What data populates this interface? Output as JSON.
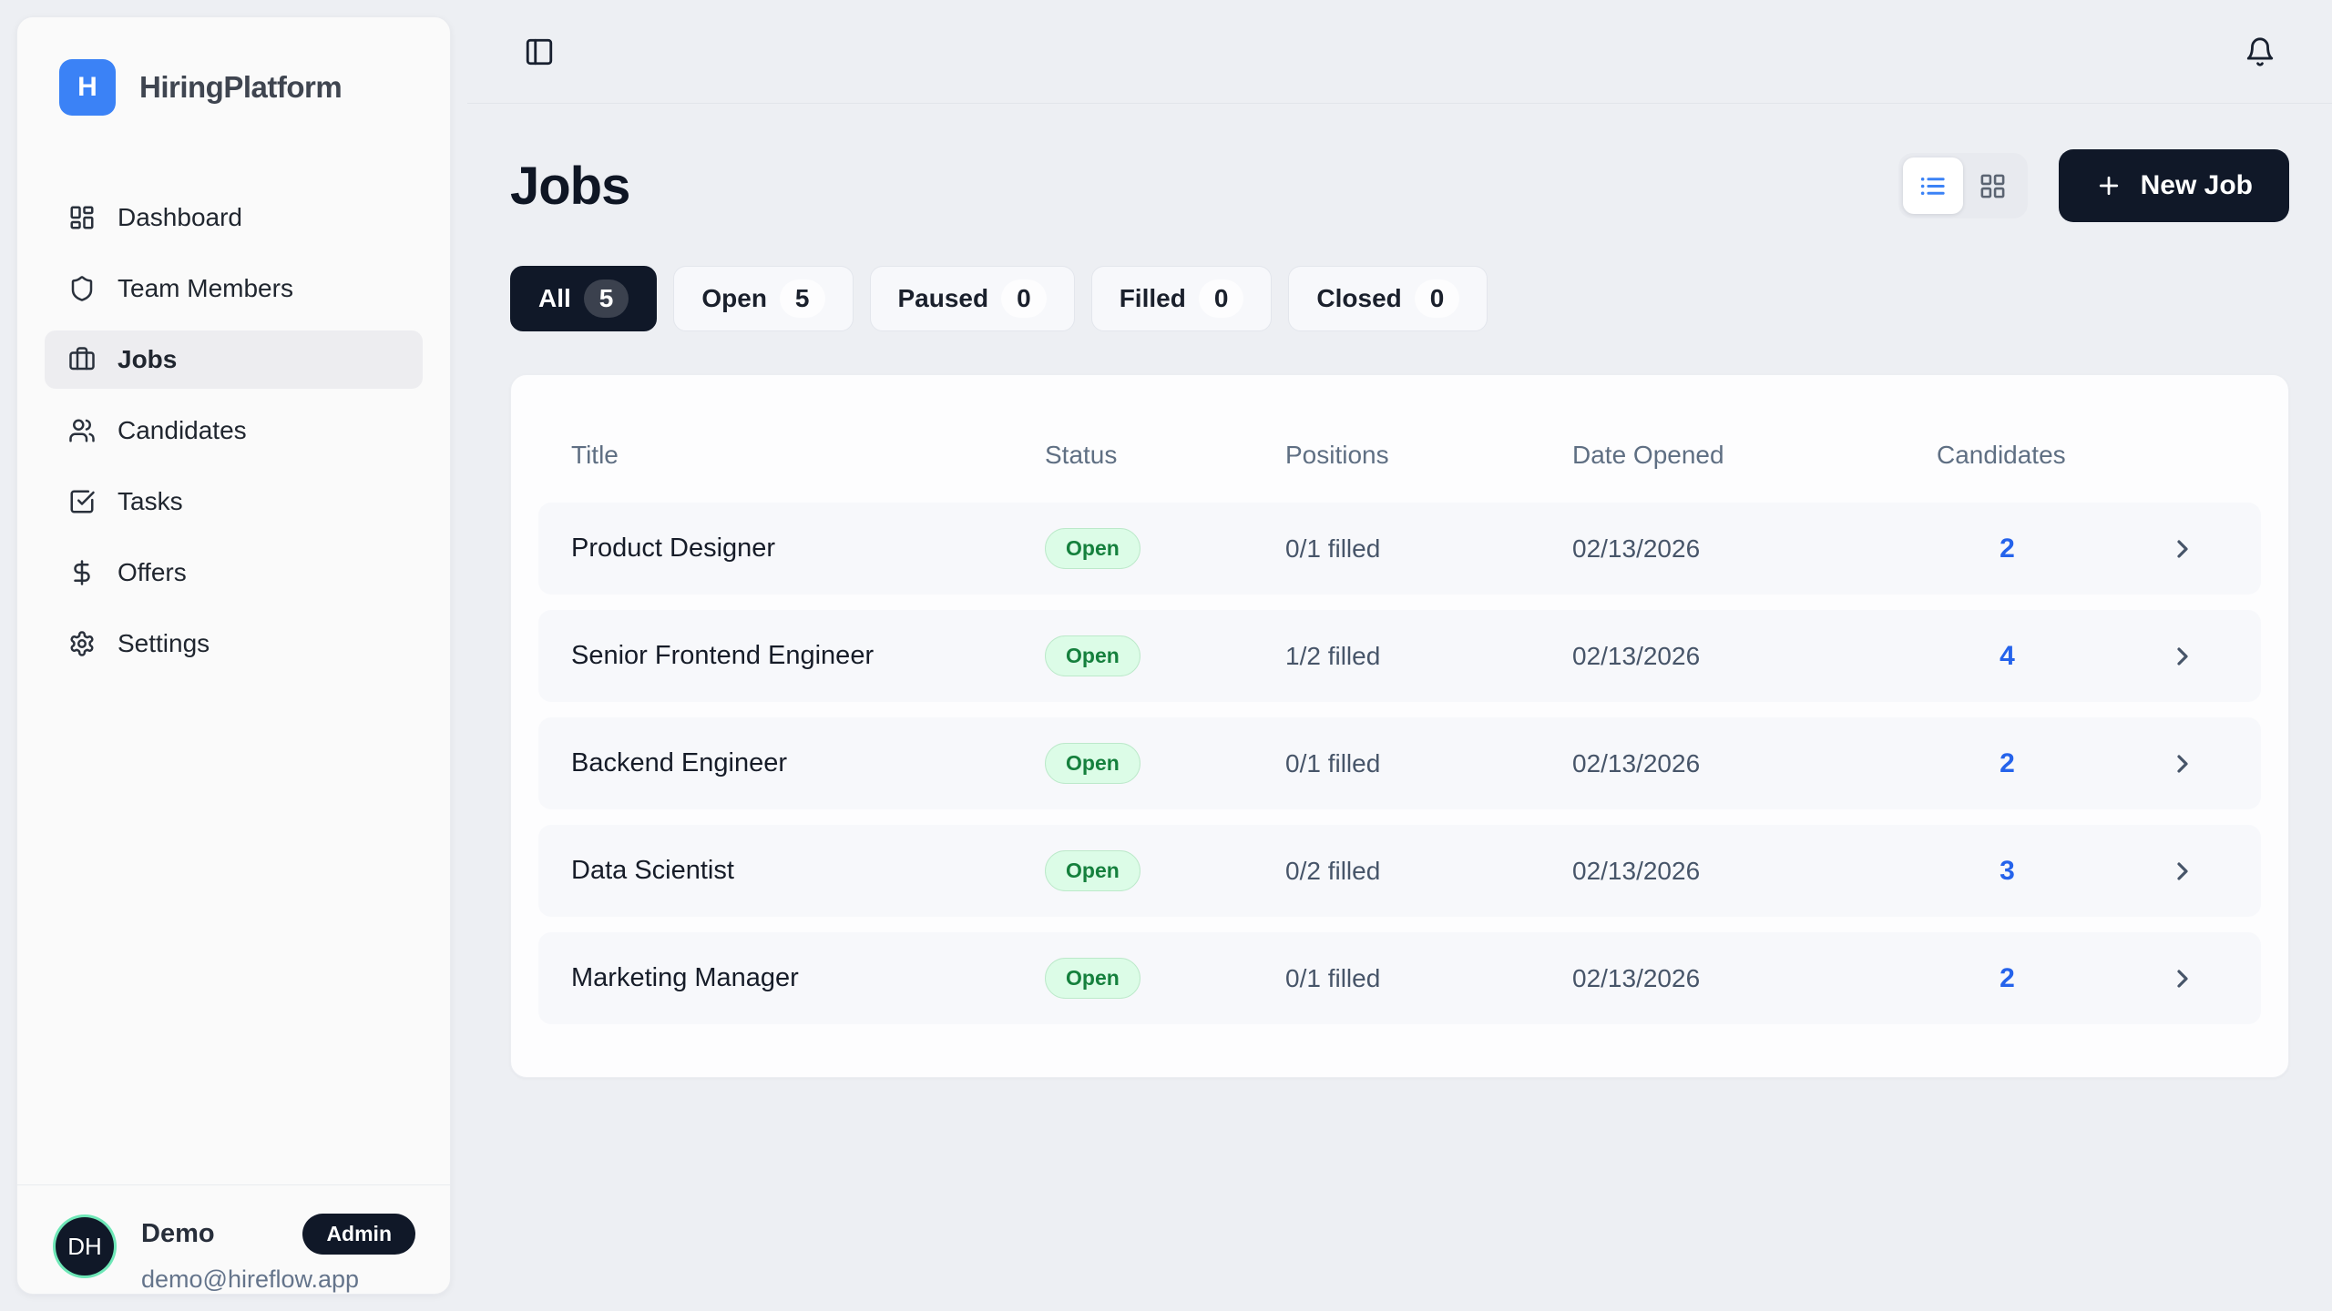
{
  "brand": {
    "name": "HiringPlatform",
    "logo_letter": "H"
  },
  "sidebar": {
    "items": [
      {
        "label": "Dashboard",
        "icon": "layout-dashboard",
        "active": false
      },
      {
        "label": "Team Members",
        "icon": "shield",
        "active": false
      },
      {
        "label": "Jobs",
        "icon": "briefcase",
        "active": true
      },
      {
        "label": "Candidates",
        "icon": "users",
        "active": false
      },
      {
        "label": "Tasks",
        "icon": "check-square",
        "active": false
      },
      {
        "label": "Offers",
        "icon": "dollar-sign",
        "active": false
      },
      {
        "label": "Settings",
        "icon": "gear",
        "active": false
      }
    ]
  },
  "user": {
    "initials": "DH",
    "name": "Demo",
    "role_badge": "Admin",
    "email": "demo@hireflow.app"
  },
  "page": {
    "title": "Jobs"
  },
  "actions": {
    "new_job_label": "New Job"
  },
  "view_toggle": {
    "active_mode": "list",
    "modes": [
      "list",
      "grid"
    ]
  },
  "filters": [
    {
      "label": "All",
      "count": "5",
      "active": true
    },
    {
      "label": "Open",
      "count": "5",
      "active": false
    },
    {
      "label": "Paused",
      "count": "0",
      "active": false
    },
    {
      "label": "Filled",
      "count": "0",
      "active": false
    },
    {
      "label": "Closed",
      "count": "0",
      "active": false
    }
  ],
  "table": {
    "columns": [
      {
        "label": "Title"
      },
      {
        "label": "Status"
      },
      {
        "label": "Positions"
      },
      {
        "label": "Date Opened"
      },
      {
        "label": "Candidates"
      }
    ],
    "rows": [
      {
        "title": "Product Designer",
        "status": "Open",
        "positions": "0/1 filled",
        "date_opened": "02/13/2026",
        "candidates": "2"
      },
      {
        "title": "Senior Frontend Engineer",
        "status": "Open",
        "positions": "1/2 filled",
        "date_opened": "02/13/2026",
        "candidates": "4"
      },
      {
        "title": "Backend Engineer",
        "status": "Open",
        "positions": "0/1 filled",
        "date_opened": "02/13/2026",
        "candidates": "2"
      },
      {
        "title": "Data Scientist",
        "status": "Open",
        "positions": "0/2 filled",
        "date_opened": "02/13/2026",
        "candidates": "3"
      },
      {
        "title": "Marketing Manager",
        "status": "Open",
        "positions": "0/1 filled",
        "date_opened": "02/13/2026",
        "candidates": "2"
      }
    ]
  },
  "colors": {
    "accent_blue": "#3b82f6",
    "dark_navy": "#101828",
    "open_pill_bg": "#dcfce7",
    "open_pill_text": "#15803d",
    "candidate_link_blue": "#2563eb",
    "avatar_ring_green": "#6ee7b7",
    "page_bg": "#edeff3"
  }
}
